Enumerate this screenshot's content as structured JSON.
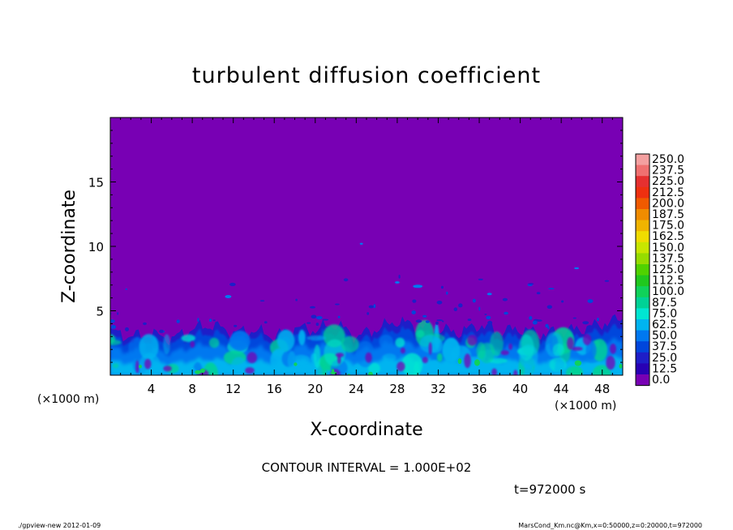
{
  "chart_data": {
    "type": "heatmap",
    "title": "turbulent diffusion coefficient",
    "xlabel": "X-coordinate",
    "ylabel": "Z-coordinate",
    "x_unit": "(×1000 m)",
    "y_unit": "(×1000 m)",
    "xlim": [
      0,
      50
    ],
    "ylim": [
      0,
      20
    ],
    "x_ticks": [
      4,
      8,
      12,
      16,
      20,
      24,
      28,
      32,
      36,
      40,
      44,
      48
    ],
    "y_ticks": [
      5,
      10,
      15
    ],
    "colorbar": {
      "levels": [
        "250.0",
        "237.5",
        "225.0",
        "212.5",
        "200.0",
        "187.5",
        "175.0",
        "162.5",
        "150.0",
        "137.5",
        "125.0",
        "112.5",
        "100.0",
        "87.5",
        "75.0",
        "62.5",
        "50.0",
        "37.5",
        "25.0",
        "12.5",
        "0.0"
      ],
      "colors": [
        "#f4a0a0",
        "#f07070",
        "#e63030",
        "#ee3010",
        "#f05a00",
        "#f08c00",
        "#f0b400",
        "#f0dc00",
        "#c8e600",
        "#96dc00",
        "#50d200",
        "#20c81e",
        "#10d25a",
        "#00d296",
        "#00e6d2",
        "#00b4f0",
        "#0078f0",
        "#0046dc",
        "#1e1ec8",
        "#2800b4",
        "#7800b4"
      ]
    },
    "profile_description_points": {
      "x": [
        0,
        2,
        4,
        6,
        8,
        10,
        12,
        14,
        16,
        18,
        20,
        22,
        24,
        26,
        28,
        30,
        32,
        34,
        36,
        38,
        40,
        42,
        44,
        46,
        48,
        50
      ],
      "turbulent_layer_top": [
        3.4,
        3.0,
        3.2,
        2.8,
        3.6,
        3.9,
        3.3,
        3.5,
        3.0,
        3.7,
        3.5,
        4.0,
        3.0,
        3.6,
        4.2,
        3.8,
        3.6,
        3.3,
        3.9,
        3.4,
        3.6,
        3.2,
        3.4,
        3.6,
        4.0,
        4.4
      ]
    }
  },
  "info": {
    "contour_interval": "CONTOUR INTERVAL = 1.000E+02",
    "time": "t=972000 s",
    "footer_left": "./gpview-new  2012-01-09",
    "footer_right": "MarsCond_Km.nc@Km,x=0:50000,z=0:20000,t=972000"
  }
}
